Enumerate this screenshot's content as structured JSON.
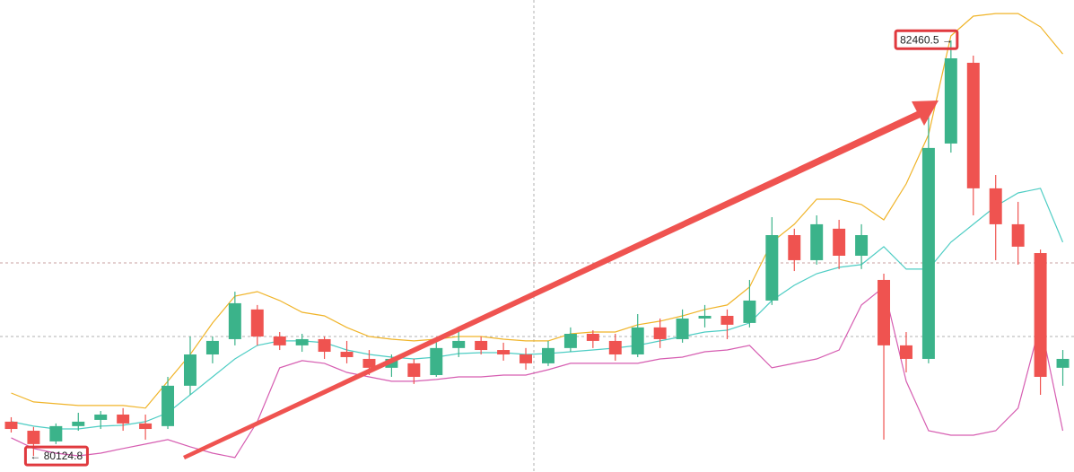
{
  "chart_data": {
    "type": "candlestick",
    "categories": [
      null,
      null,
      null,
      null,
      null,
      null,
      null,
      null,
      null,
      null,
      null,
      null,
      null,
      null,
      null,
      null,
      null,
      null,
      null,
      null,
      null,
      null,
      null,
      null,
      null,
      null,
      null,
      null,
      null,
      null,
      null,
      null,
      null,
      null,
      null,
      null,
      null,
      null,
      null,
      null,
      null,
      null,
      null,
      null,
      null,
      null,
      null,
      null
    ],
    "open": [
      80317,
      80266,
      80206,
      80292,
      80327,
      80357,
      80307,
      80292,
      80519,
      80695,
      80781,
      80948,
      80796,
      80746,
      80781,
      80710,
      80670,
      80620,
      80645,
      80579,
      80731,
      80771,
      80720,
      80695,
      80645,
      80731,
      80811,
      80771,
      80695,
      80847,
      80781,
      80897,
      80912,
      80872,
      80998,
      81366,
      81225,
      81402,
      81250,
      81114,
      80746,
      80670,
      81881,
      82335,
      81629,
      81427,
      81265,
      80620
    ],
    "high": [
      80342,
      80287,
      80307,
      80367,
      80377,
      80393,
      80357,
      80569,
      80796,
      80796,
      81048,
      80973,
      80821,
      80811,
      80796,
      80771,
      80720,
      80695,
      80670,
      80771,
      80831,
      80796,
      80761,
      80731,
      80771,
      80847,
      80831,
      80811,
      80922,
      80897,
      80948,
      80973,
      80948,
      81114,
      81467,
      81402,
      81477,
      81452,
      81427,
      81149,
      80821,
      82032,
      82460.5,
      82375,
      81704,
      81553,
      81285,
      80720
    ],
    "low": [
      80256,
      80124.8,
      80191,
      80266,
      80276,
      80266,
      80216,
      80276,
      80468,
      80645,
      80746,
      80746,
      80720,
      80710,
      80670,
      80645,
      80579,
      80569,
      80529,
      80569,
      80680,
      80695,
      80660,
      80609,
      80630,
      80710,
      80731,
      80660,
      80680,
      80731,
      80761,
      80847,
      80781,
      80847,
      80973,
      81164,
      81200,
      81175,
      81175,
      80216,
      80594,
      80645,
      81830,
      81477,
      81225,
      81200,
      80468,
      80519
    ],
    "close": [
      80276,
      80191,
      80292,
      80317,
      80357,
      80307,
      80276,
      80519,
      80695,
      80771,
      80983,
      80796,
      80746,
      80781,
      80710,
      80680,
      80620,
      80670,
      80569,
      80731,
      80771,
      80720,
      80695,
      80645,
      80731,
      80811,
      80771,
      80695,
      80847,
      80781,
      80897,
      80912,
      80862,
      80998,
      81366,
      81225,
      81427,
      81250,
      81366,
      80746,
      80670,
      81856,
      82360,
      81629,
      81427,
      81301,
      80569,
      80670
    ],
    "up_color": "#3bb38a",
    "down_color": "#ef5350",
    "bands": [
      {
        "color": "#f0b429",
        "values": [
          80478,
          80428,
          80418,
          80408,
          80408,
          80408,
          80393,
          80544,
          80695,
          80872,
          81023,
          81048,
          80998,
          80932,
          80912,
          80847,
          80796,
          80781,
          80771,
          80781,
          80796,
          80796,
          80781,
          80771,
          80771,
          80811,
          80821,
          80821,
          80862,
          80882,
          80912,
          80948,
          80973,
          81074,
          81326,
          81427,
          81568,
          81568,
          81538,
          81452,
          81654,
          81931,
          82486,
          82597,
          82612,
          82612,
          82537,
          82385
        ]
      },
      {
        "color": "#4ecdc4",
        "values": [
          80317,
          80292,
          80276,
          80276,
          80292,
          80297,
          80317,
          80367,
          80468,
          80569,
          80670,
          80746,
          80771,
          80771,
          80761,
          80720,
          80695,
          80680,
          80670,
          80680,
          80700,
          80705,
          80705,
          80695,
          80700,
          80710,
          80720,
          80731,
          80746,
          80771,
          80796,
          80821,
          80831,
          80872,
          80998,
          81084,
          81149,
          81185,
          81200,
          81301,
          81175,
          81175,
          81326,
          81427,
          81528,
          81603,
          81629,
          81326
        ]
      },
      {
        "color": "#d65db1",
        "values": [
          80226,
          80166,
          80140,
          80125,
          80140,
          80166,
          80191,
          80216,
          80176,
          80140,
          80115,
          80317,
          80620,
          80660,
          80645,
          80594,
          80569,
          80544,
          80544,
          80554,
          80569,
          80569,
          80579,
          80579,
          80609,
          80645,
          80645,
          80645,
          80645,
          80670,
          80680,
          80710,
          80720,
          80746,
          80620,
          80645,
          80670,
          80720,
          80973,
          81074,
          80544,
          80266,
          80241,
          80241,
          80266,
          80393,
          80872,
          80266
        ]
      }
    ],
    "ylim": [
      80034,
      82688
    ],
    "high_label": "82460.5 →",
    "low_label": "← 80124.8"
  }
}
